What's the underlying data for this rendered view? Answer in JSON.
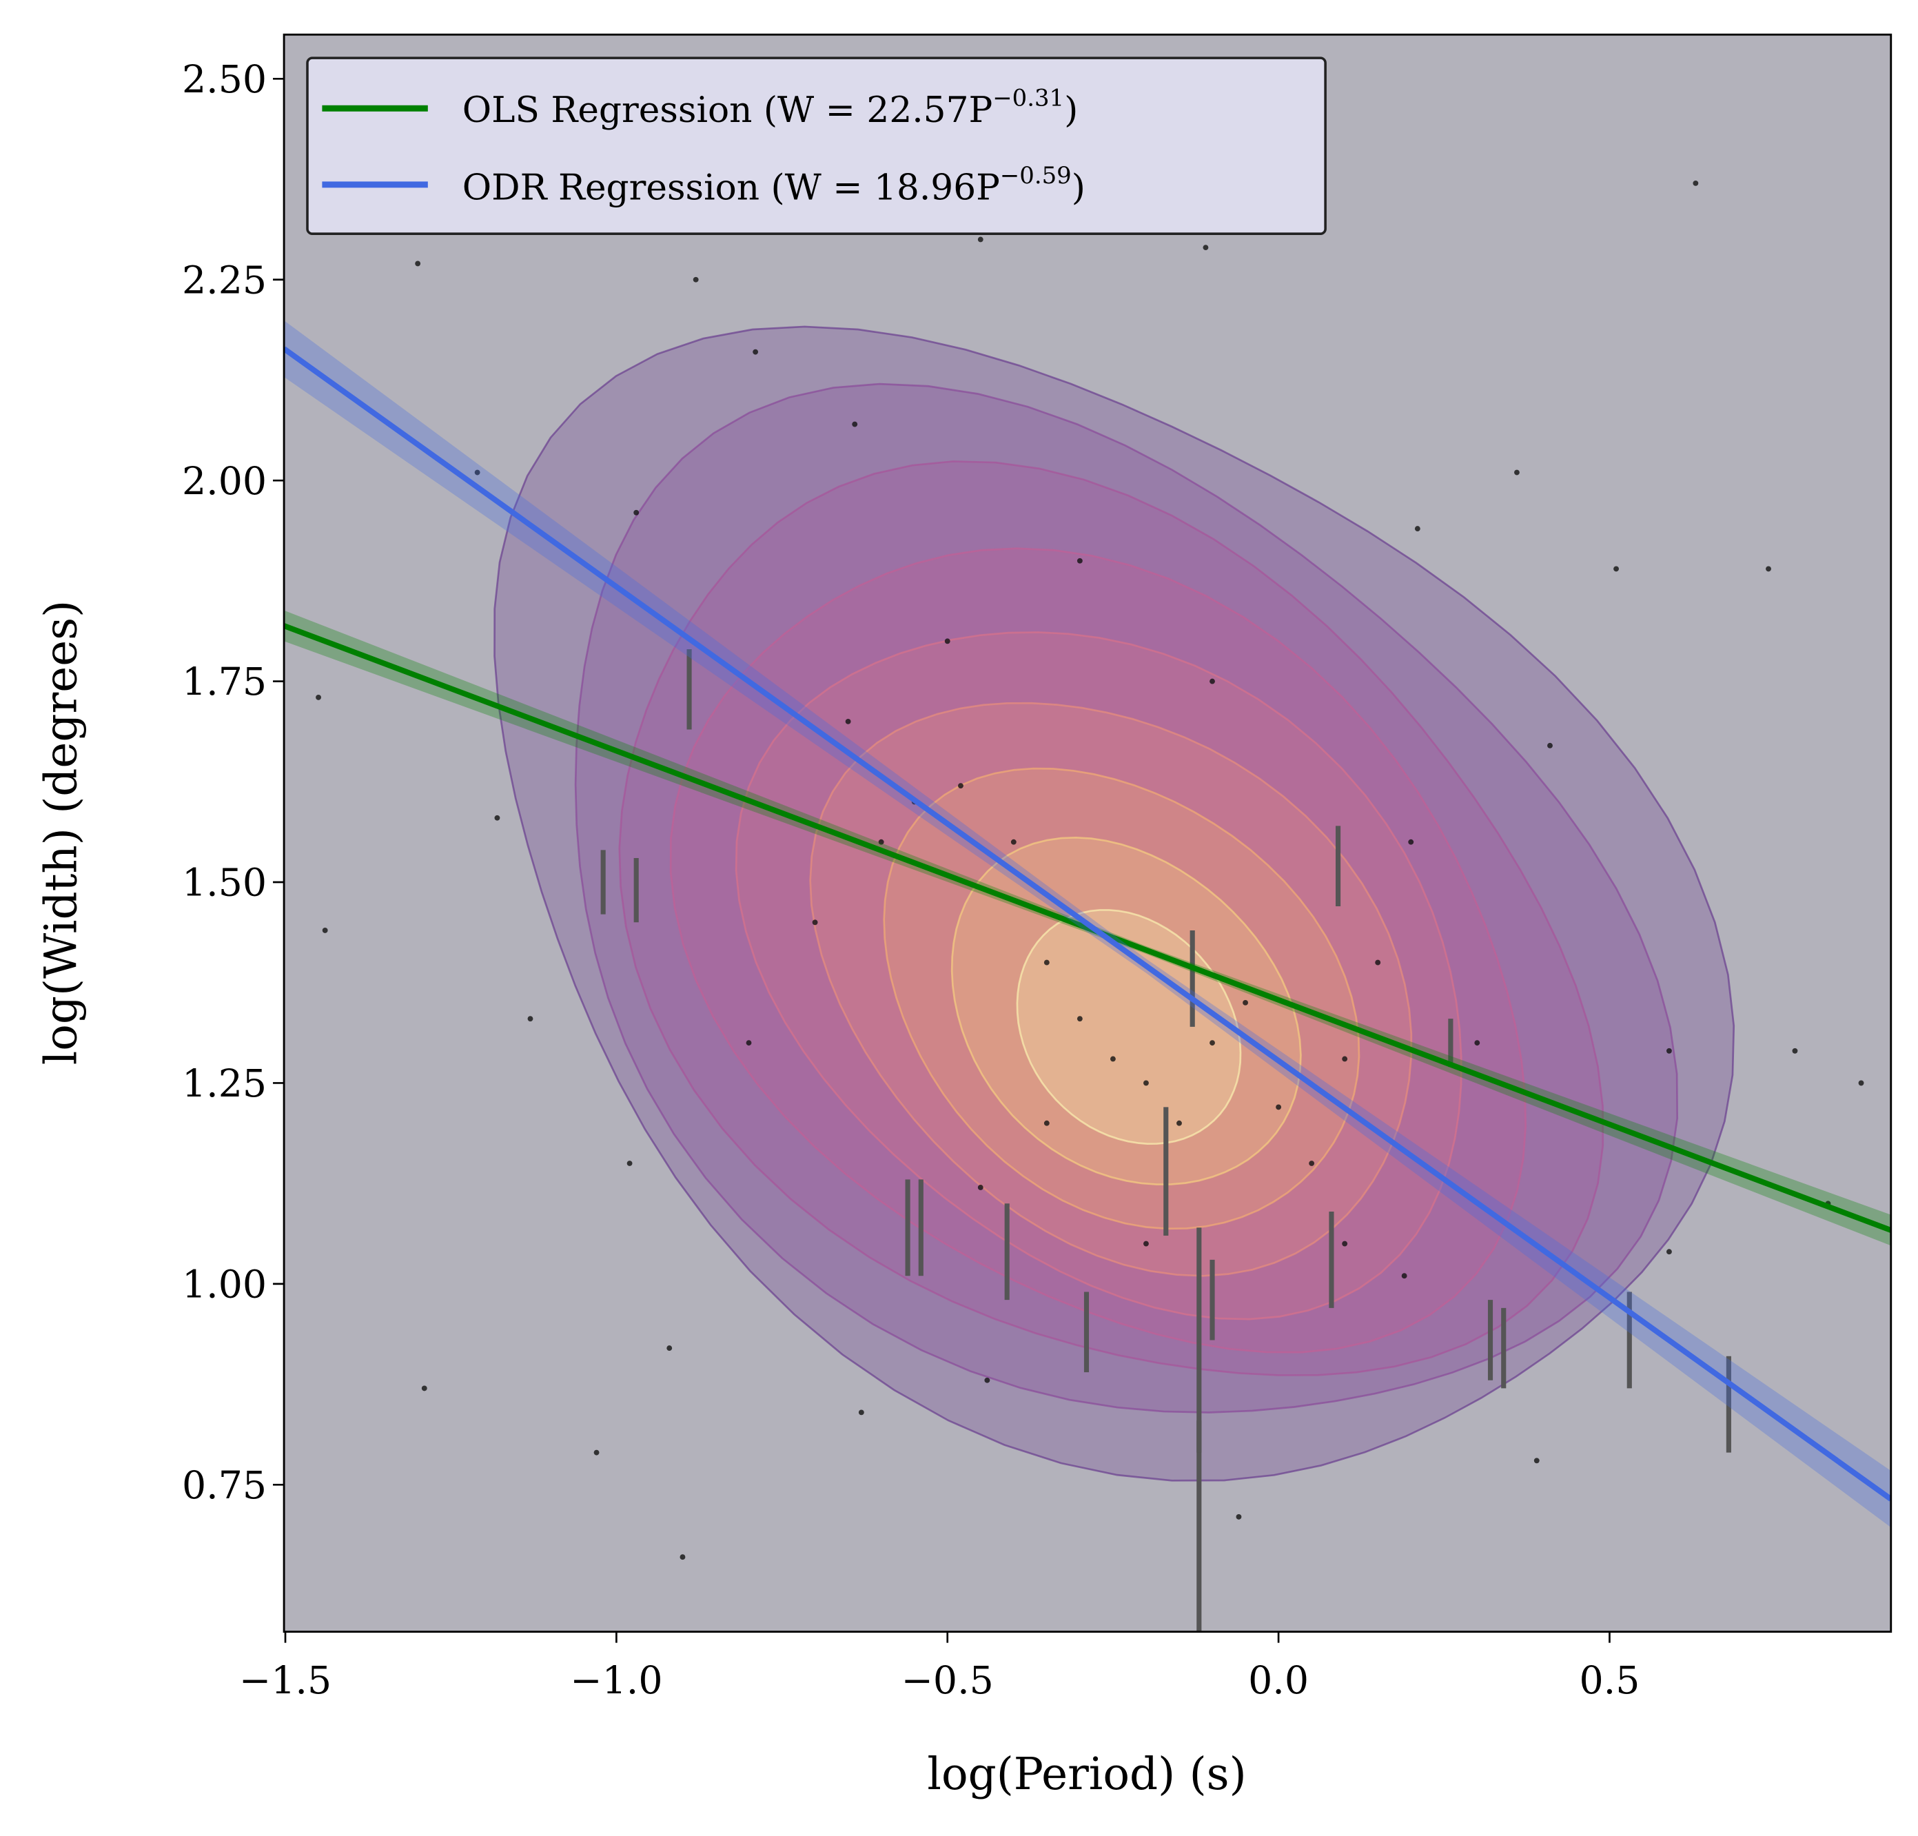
{
  "chart_data": {
    "type": "scatter",
    "xlabel": "log(Period) (s)",
    "ylabel": "log(Width) (degrees)",
    "xlim": [
      -1.502,
      0.925
    ],
    "ylim": [
      0.567,
      2.555
    ],
    "xticks": [
      "−1.5",
      "−1.0",
      "−0.5",
      "0.0",
      "0.5"
    ],
    "xtick_values": [
      -1.5,
      -1.0,
      -0.5,
      0.0,
      0.5
    ],
    "yticks": [
      "0.75",
      "1.00",
      "1.25",
      "1.50",
      "1.75",
      "2.00",
      "2.25",
      "2.50"
    ],
    "ytick_values": [
      0.75,
      1.0,
      1.25,
      1.5,
      1.75,
      2.0,
      2.25,
      2.5
    ],
    "grid": false,
    "legend_position": "top-left",
    "background_color": "#b3b2bb",
    "series": [
      {
        "name": "OLS Regression (W = 22.57P",
        "exponent": "−0.31",
        "type": "line",
        "color": "#008000",
        "intercept": 1.3535,
        "slope": -0.31
      },
      {
        "name": "ODR Regression (W = 18.96P",
        "exponent": "−0.59",
        "type": "line",
        "color": "#4169e1",
        "intercept": 1.2778,
        "slope": -0.59
      }
    ],
    "kde_levels": 9,
    "kde_colors": [
      "#6a3d8f",
      "#8a4a9a",
      "#a8549a",
      "#c25f95",
      "#d8728a",
      "#e88e7c",
      "#f2ad74",
      "#f7cf80",
      "#fbf1b0"
    ],
    "points": [
      [
        -1.3,
        2.27
      ],
      [
        -1.21,
        2.01
      ],
      [
        -1.18,
        1.58
      ],
      [
        -1.45,
        1.73
      ],
      [
        -1.44,
        1.44
      ],
      [
        -1.13,
        1.33
      ],
      [
        -1.29,
        0.87
      ],
      [
        -0.9,
        0.66
      ],
      [
        -0.92,
        0.92
      ],
      [
        -1.03,
        0.79
      ],
      [
        -0.98,
        1.15
      ],
      [
        -0.97,
        1.96
      ],
      [
        -0.88,
        2.25
      ],
      [
        -0.79,
        2.16
      ],
      [
        -0.64,
        2.07
      ],
      [
        -0.45,
        2.3
      ],
      [
        -0.11,
        2.29
      ],
      [
        0.21,
        1.94
      ],
      [
        0.36,
        2.01
      ],
      [
        0.51,
        1.89
      ],
      [
        0.63,
        2.37
      ],
      [
        0.74,
        1.89
      ],
      [
        0.59,
        1.29
      ],
      [
        0.78,
        1.29
      ],
      [
        0.83,
        1.1
      ],
      [
        0.88,
        1.25
      ],
      [
        0.41,
        1.67
      ],
      [
        0.59,
        1.04
      ],
      [
        -0.63,
        0.84
      ],
      [
        -0.44,
        0.88
      ],
      [
        -0.06,
        0.71
      ],
      [
        0.39,
        0.78
      ],
      [
        0.19,
        1.01
      ],
      [
        -0.6,
        1.55
      ],
      [
        -0.55,
        1.6
      ],
      [
        -0.48,
        1.62
      ],
      [
        -0.4,
        1.55
      ],
      [
        -0.35,
        1.4
      ],
      [
        -0.3,
        1.33
      ],
      [
        -0.25,
        1.28
      ],
      [
        -0.2,
        1.25
      ],
      [
        -0.15,
        1.2
      ],
      [
        -0.1,
        1.3
      ],
      [
        -0.05,
        1.35
      ],
      [
        0.0,
        1.22
      ],
      [
        0.05,
        1.15
      ],
      [
        0.1,
        1.28
      ],
      [
        0.15,
        1.4
      ],
      [
        -0.7,
        1.45
      ],
      [
        -0.65,
        1.7
      ],
      [
        -0.5,
        1.8
      ],
      [
        -0.3,
        1.9
      ],
      [
        -0.1,
        1.75
      ],
      [
        0.2,
        1.55
      ],
      [
        0.3,
        1.3
      ],
      [
        -0.45,
        1.12
      ],
      [
        -0.2,
        1.05
      ],
      [
        0.1,
        1.05
      ],
      [
        -0.8,
        1.3
      ],
      [
        -0.35,
        1.2
      ]
    ],
    "error_bars": [
      [
        -1.02,
        1.5,
        0.04
      ],
      [
        -0.97,
        1.49,
        0.04
      ],
      [
        -0.89,
        1.74,
        0.05
      ],
      [
        -0.56,
        1.07,
        0.06
      ],
      [
        -0.54,
        1.07,
        0.06
      ],
      [
        -0.41,
        1.04,
        0.06
      ],
      [
        -0.29,
        0.94,
        0.05
      ],
      [
        -0.12,
        0.69,
        0.14
      ],
      [
        -0.12,
        0.93,
        0.14
      ],
      [
        -0.1,
        0.98,
        0.05
      ],
      [
        0.08,
        1.03,
        0.06
      ],
      [
        0.32,
        0.93,
        0.05
      ],
      [
        0.34,
        0.92,
        0.05
      ],
      [
        0.53,
        0.93,
        0.06
      ],
      [
        0.68,
        0.85,
        0.06
      ],
      [
        -0.13,
        1.38,
        0.06
      ],
      [
        -0.17,
        1.14,
        0.08
      ],
      [
        0.09,
        1.52,
        0.05
      ],
      [
        0.26,
        1.3,
        0.03
      ]
    ]
  }
}
